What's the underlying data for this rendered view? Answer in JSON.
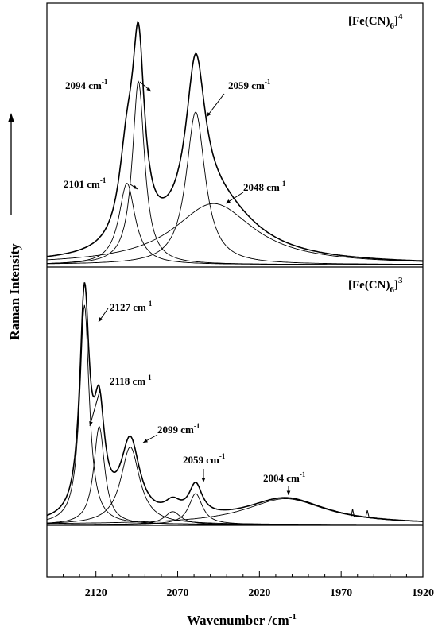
{
  "chart_data": [
    {
      "type": "line",
      "panel": "top",
      "title": "[Fe(CN)6]4-",
      "title_parts": {
        "base": "[Fe(CN)",
        "sub": "6",
        "close": "]",
        "sup": "4-"
      },
      "x_axis_reversed": true,
      "xlim": [
        2150,
        1920
      ],
      "ylim": [
        0,
        1
      ],
      "components": [
        {
          "name": "2094 cm-1",
          "center": 2094,
          "amp": 0.72,
          "width": 4.5
        },
        {
          "name": "2101 cm-1",
          "center": 2101,
          "amp": 0.32,
          "width": 6
        },
        {
          "name": "2059 cm-1",
          "center": 2059,
          "amp": 0.6,
          "width": 7
        },
        {
          "name": "2048 cm-1",
          "center": 2048,
          "amp": 0.24,
          "width": 30
        }
      ],
      "annotations": [
        {
          "text": "2094 cm",
          "sup": "-1",
          "arrow_to": 2094
        },
        {
          "text": "2059 cm",
          "sup": "-1",
          "arrow_to": 2059
        },
        {
          "text": "2101 cm",
          "sup": "-1",
          "arrow_to": 2101
        },
        {
          "text": "2048 cm",
          "sup": "-1",
          "arrow_to": 2048
        }
      ]
    },
    {
      "type": "line",
      "panel": "bottom",
      "title": "[Fe(CN)6]3-",
      "title_parts": {
        "base": "[Fe(CN)",
        "sub": "6",
        "close": "]",
        "sup": "3-"
      },
      "x_axis_reversed": true,
      "xlim": [
        2150,
        1920
      ],
      "ylim": [
        0,
        1
      ],
      "components": [
        {
          "name": "2127 cm-1",
          "center": 2127,
          "amp": 0.85,
          "width": 3.5
        },
        {
          "name": "2118 cm-1",
          "center": 2118,
          "amp": 0.38,
          "width": 4
        },
        {
          "name": "2099 cm-1",
          "center": 2099,
          "amp": 0.3,
          "width": 7
        },
        {
          "name": "2073 cm-1",
          "center": 2073,
          "amp": 0.05,
          "width": 6
        },
        {
          "name": "2059 cm-1",
          "center": 2059,
          "amp": 0.12,
          "width": 5
        },
        {
          "name": "2004 cm-1",
          "center": 2004,
          "amp": 0.1,
          "width": 30
        }
      ],
      "annotations": [
        {
          "text": "2127 cm",
          "sup": "-1",
          "arrow_to": 2127
        },
        {
          "text": "2118 cm",
          "sup": "-1",
          "arrow_to": 2118
        },
        {
          "text": "2099 cm",
          "sup": "-1",
          "arrow_to": 2099
        },
        {
          "text": "2059 cm",
          "sup": "-1",
          "arrow_to": 2059
        },
        {
          "text": "2004 cm",
          "sup": "-1",
          "arrow_to": 2004
        }
      ]
    }
  ],
  "xlabel": "Wavenumber /cm",
  "xlabel_sup": "-1",
  "ylabel": "Raman Intensity",
  "xticks": [
    2120,
    2070,
    2020,
    1970,
    1920
  ],
  "xticks_minor_step": 10
}
